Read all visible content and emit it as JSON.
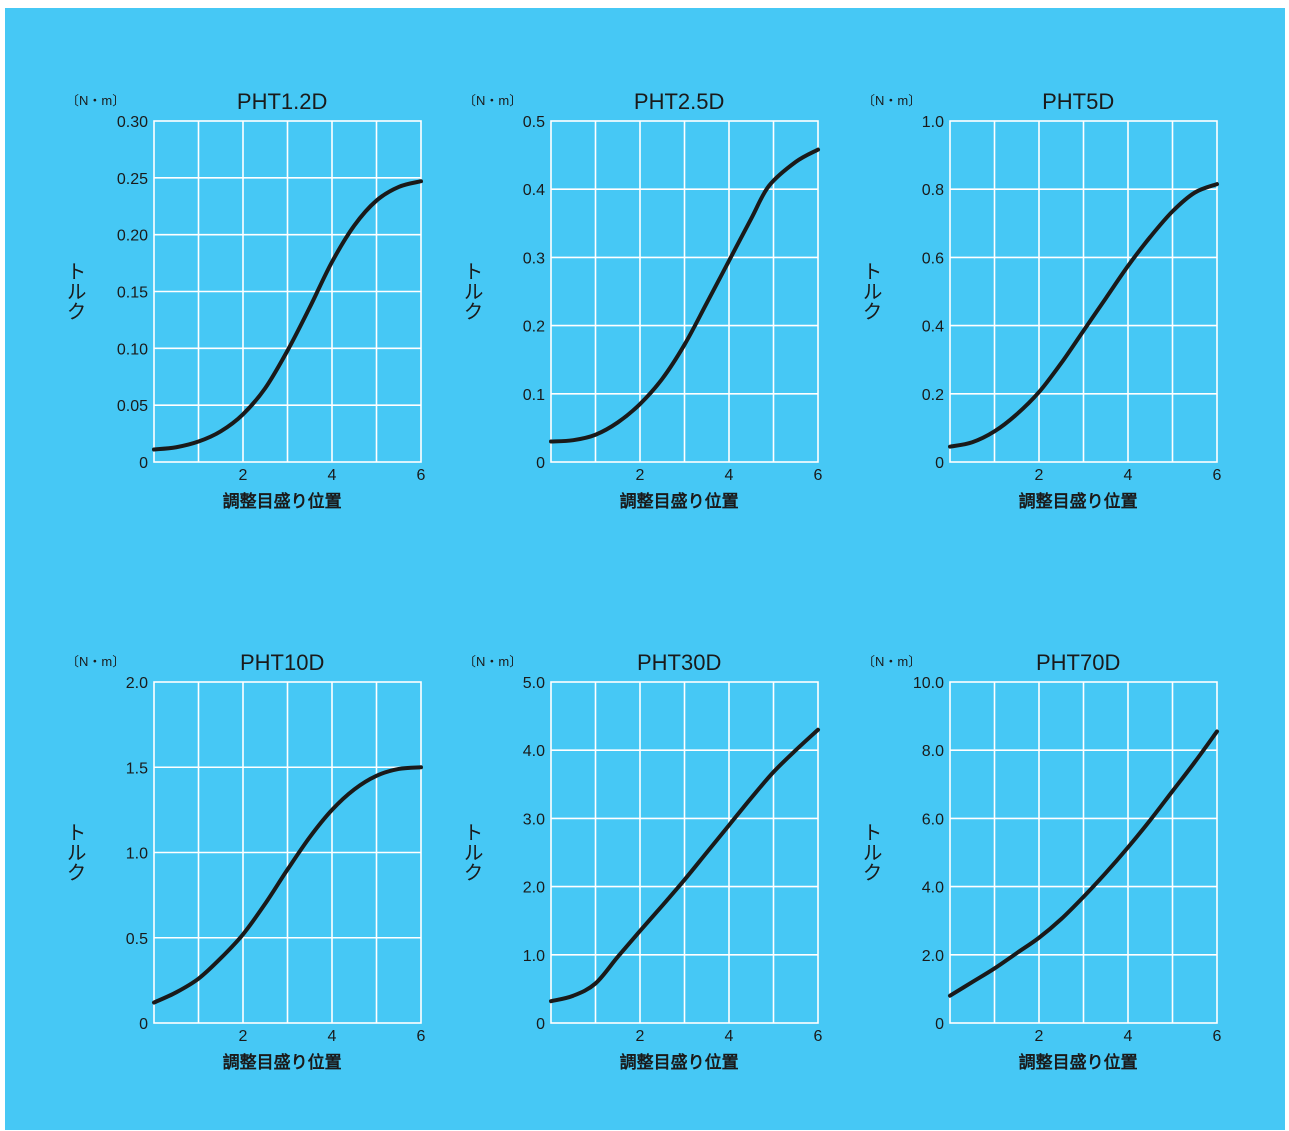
{
  "colors": {
    "background": "#46c8f5",
    "grid": "#ffffff",
    "curve": "#1a1a1a",
    "text": "#1a1a1a"
  },
  "chart_data": [
    {
      "type": "line",
      "title": "PHT1.2D",
      "unit": "〔N・m〕",
      "xlabel": "調整目盛り位置",
      "ylabel": "トルク",
      "xlim": [
        0,
        6
      ],
      "ylim": [
        0,
        0.3
      ],
      "x_ticks": [
        "2",
        "4",
        "6"
      ],
      "y_ticks": [
        "0",
        "0.05",
        "0.10",
        "0.15",
        "0.20",
        "0.25",
        "0.30"
      ],
      "grid": true,
      "series": [
        {
          "x": [
            0,
            0.5,
            1,
            1.5,
            2,
            2.5,
            3,
            3.5,
            4,
            4.5,
            5,
            5.5,
            6
          ],
          "y": [
            0.011,
            0.013,
            0.018,
            0.027,
            0.042,
            0.065,
            0.098,
            0.136,
            0.176,
            0.208,
            0.23,
            0.242,
            0.247
          ]
        }
      ]
    },
    {
      "type": "line",
      "title": "PHT2.5D",
      "unit": "〔N・m〕",
      "xlabel": "調整目盛り位置",
      "ylabel": "トルク",
      "xlim": [
        0,
        6
      ],
      "ylim": [
        0,
        0.5
      ],
      "x_ticks": [
        "2",
        "4",
        "6"
      ],
      "y_ticks": [
        "0",
        "0.1",
        "0.2",
        "0.3",
        "0.4",
        "0.5"
      ],
      "grid": true,
      "series": [
        {
          "x": [
            0,
            0.5,
            1,
            1.5,
            2,
            2.5,
            3,
            3.5,
            4,
            4.5,
            4.9,
            5.5,
            6
          ],
          "y": [
            0.03,
            0.032,
            0.04,
            0.058,
            0.085,
            0.122,
            0.172,
            0.233,
            0.295,
            0.357,
            0.405,
            0.44,
            0.458
          ]
        }
      ]
    },
    {
      "type": "line",
      "title": "PHT5D",
      "unit": "〔N・m〕",
      "xlabel": "調整目盛り位置",
      "ylabel": "トルク",
      "xlim": [
        0,
        6
      ],
      "ylim": [
        0,
        1.0
      ],
      "x_ticks": [
        "2",
        "4",
        "6"
      ],
      "y_ticks": [
        "0",
        "0.2",
        "0.4",
        "0.6",
        "0.8",
        "1.0"
      ],
      "grid": true,
      "series": [
        {
          "x": [
            0,
            0.5,
            1,
            1.5,
            2,
            2.5,
            3,
            3.5,
            4,
            4.5,
            5,
            5.5,
            6
          ],
          "y": [
            0.045,
            0.058,
            0.09,
            0.14,
            0.205,
            0.29,
            0.385,
            0.48,
            0.575,
            0.66,
            0.735,
            0.79,
            0.815
          ]
        }
      ]
    },
    {
      "type": "line",
      "title": "PHT10D",
      "unit": "〔N・m〕",
      "xlabel": "調整目盛り位置",
      "ylabel": "トルク",
      "xlim": [
        0,
        6
      ],
      "ylim": [
        0,
        2.0
      ],
      "x_ticks": [
        "2",
        "4",
        "6"
      ],
      "y_ticks": [
        "0",
        "0.5",
        "1.0",
        "1.5",
        "2.0"
      ],
      "grid": true,
      "series": [
        {
          "x": [
            0,
            0.5,
            1,
            1.5,
            2,
            2.5,
            3,
            3.5,
            4,
            4.5,
            5,
            5.5,
            6
          ],
          "y": [
            0.12,
            0.18,
            0.26,
            0.38,
            0.52,
            0.7,
            0.9,
            1.09,
            1.25,
            1.37,
            1.45,
            1.49,
            1.5
          ]
        }
      ]
    },
    {
      "type": "line",
      "title": "PHT30D",
      "unit": "〔N・m〕",
      "xlabel": "調整目盛り位置",
      "ylabel": "トルク",
      "xlim": [
        0,
        6
      ],
      "ylim": [
        0,
        5.0
      ],
      "x_ticks": [
        "2",
        "4",
        "6"
      ],
      "y_ticks": [
        "0",
        "1.0",
        "2.0",
        "3.0",
        "4.0",
        "5.0"
      ],
      "grid": true,
      "series": [
        {
          "x": [
            0,
            0.5,
            1,
            1.5,
            2,
            2.5,
            3,
            3.5,
            4,
            4.5,
            5,
            5.5,
            6
          ],
          "y": [
            0.32,
            0.4,
            0.58,
            0.97,
            1.35,
            1.72,
            2.1,
            2.5,
            2.9,
            3.3,
            3.68,
            4.0,
            4.3
          ]
        }
      ]
    },
    {
      "type": "line",
      "title": "PHT70D",
      "unit": "〔N・m〕",
      "xlabel": "調整目盛り位置",
      "ylabel": "トルク",
      "xlim": [
        0,
        6
      ],
      "ylim": [
        0,
        10.0
      ],
      "x_ticks": [
        "2",
        "4",
        "6"
      ],
      "y_ticks": [
        "0",
        "2.0",
        "4.0",
        "6.0",
        "8.0",
        "10.0"
      ],
      "grid": true,
      "series": [
        {
          "x": [
            0,
            0.5,
            1,
            1.5,
            2,
            2.5,
            3,
            3.5,
            4,
            4.5,
            5,
            5.5,
            6
          ],
          "y": [
            0.8,
            1.2,
            1.6,
            2.05,
            2.5,
            3.05,
            3.7,
            4.4,
            5.15,
            5.95,
            6.8,
            7.65,
            8.55
          ]
        }
      ]
    }
  ]
}
